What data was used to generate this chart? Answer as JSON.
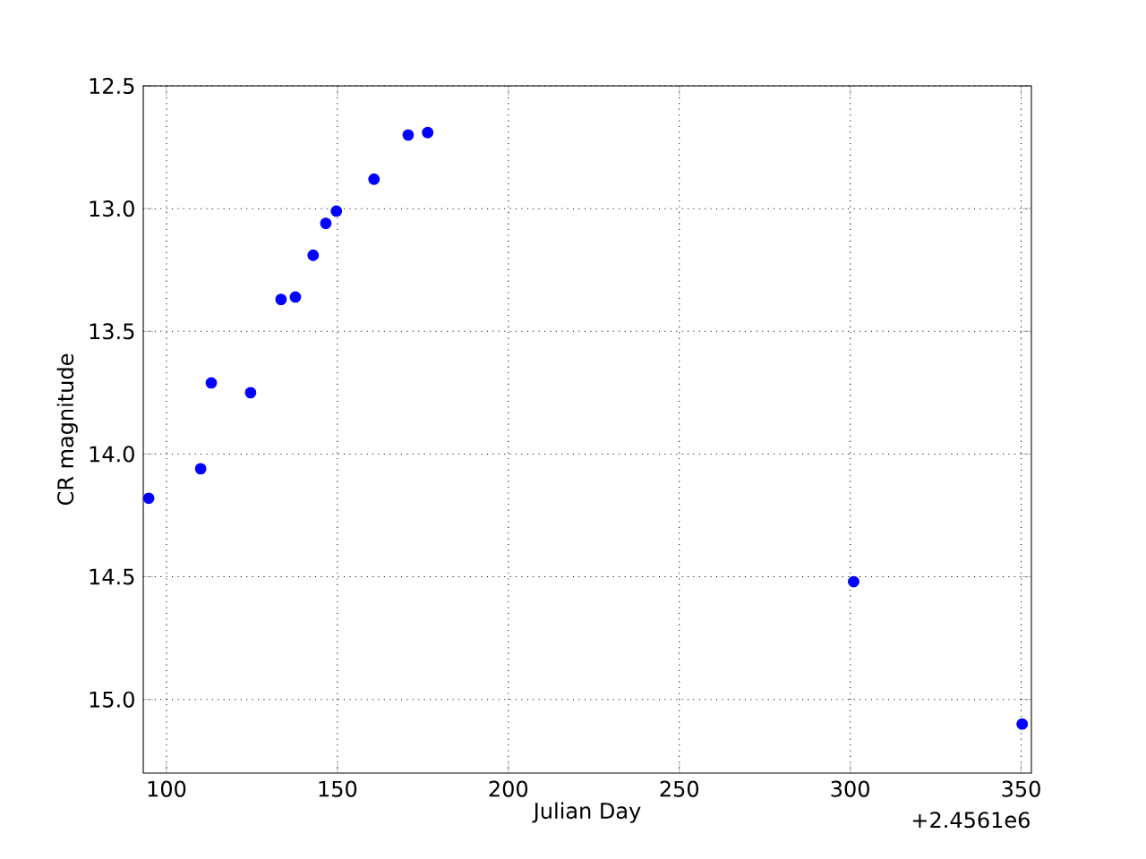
{
  "chart_data": {
    "type": "scatter",
    "xlabel": "Julian Day",
    "ylabel": "CR magnitude",
    "x": [
      94.8,
      110,
      113.1,
      124.6,
      133.5,
      137.7,
      142.9,
      146.6,
      149.7,
      160.7,
      170.7,
      176.4,
      301,
      350.3
    ],
    "series": [
      {
        "color": "#0000ff",
        "values": [
          14.18,
          14.06,
          13.71,
          13.75,
          13.37,
          13.36,
          13.19,
          13.06,
          13.01,
          12.88,
          12.7,
          12.69,
          14.52,
          15.1
        ]
      }
    ],
    "xlim": [
      93.2,
      353
    ],
    "ylim": [
      15.3,
      12.5
    ],
    "xticks": [
      100,
      150,
      200,
      250,
      300,
      350
    ],
    "yticks": [
      {
        "value": 12.5,
        "label": "12.5"
      },
      {
        "value": 13.0,
        "label": "13.0"
      },
      {
        "value": 13.5,
        "label": "13.5"
      },
      {
        "value": 14.0,
        "label": "14.0"
      },
      {
        "value": 14.5,
        "label": "14.5"
      },
      {
        "value": 15.0,
        "label": "15.0"
      }
    ],
    "grid": true,
    "marker": "circle",
    "annotations": [
      "+2.4561e6"
    ]
  }
}
